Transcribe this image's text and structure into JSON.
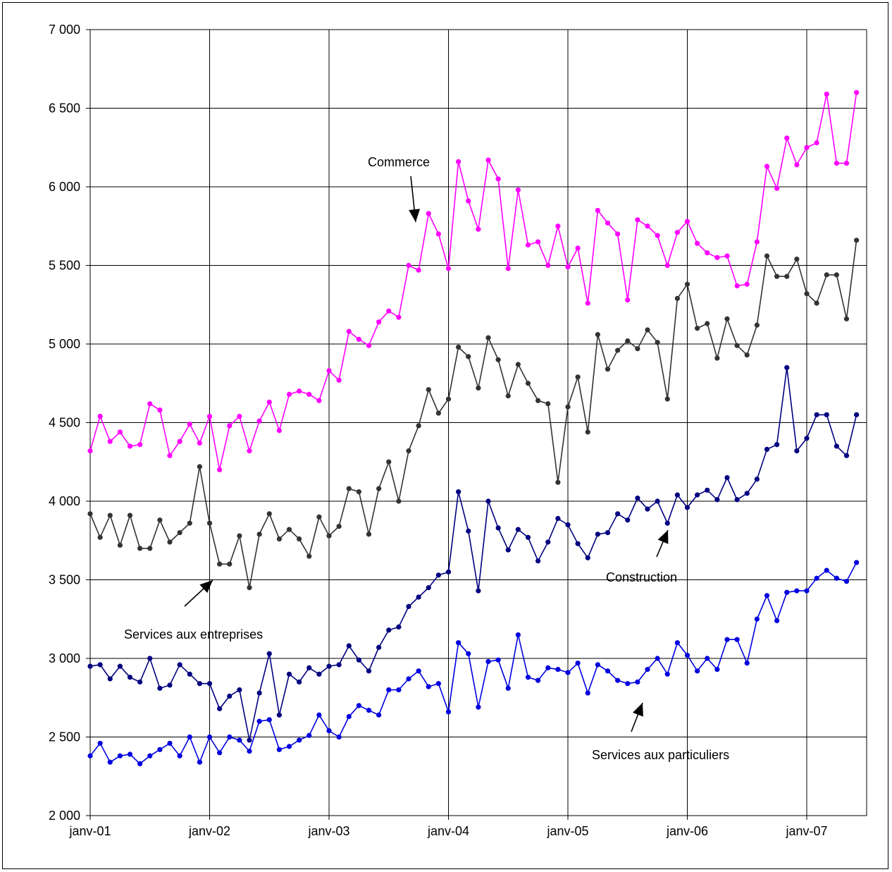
{
  "chart_data": {
    "type": "line",
    "title": "",
    "xlabel": "",
    "ylabel": "",
    "ylim": [
      2000,
      7000
    ],
    "y_ticks": [
      "2 000",
      "2 500",
      "3 000",
      "3 500",
      "4 000",
      "4 500",
      "5 000",
      "5 500",
      "6 000",
      "6 500",
      "7 000"
    ],
    "x_ticks": [
      "janv-01",
      "janv-02",
      "janv-03",
      "janv-04",
      "janv-05",
      "janv-06",
      "janv-07"
    ],
    "x_start": "janv-01",
    "grid": true,
    "legend": "none",
    "series": [
      {
        "name": "Commerce",
        "color": "#ff00ff",
        "values": [
          4320,
          4540,
          4380,
          4440,
          4350,
          4360,
          4620,
          4580,
          4290,
          4380,
          4490,
          4370,
          4540,
          4200,
          4480,
          4540,
          4320,
          4510,
          4630,
          4450,
          4680,
          4700,
          4680,
          4640,
          4830,
          4770,
          5080,
          5030,
          4990,
          5140,
          5210,
          5170,
          5500,
          5470,
          5830,
          5700,
          5480,
          6160,
          5910,
          5730,
          6170,
          6050,
          5480,
          5980,
          5630,
          5650,
          5500,
          5750,
          5490,
          5610,
          5260,
          5850,
          5770,
          5700,
          5280,
          5790,
          5750,
          5690,
          5500,
          5710,
          5780,
          5640,
          5580,
          5550,
          5560,
          5370,
          5380,
          5650,
          6130,
          5990,
          6310,
          6140,
          6250,
          6280,
          6590,
          6150,
          6150,
          6600
        ]
      },
      {
        "name": "Services aux entreprises",
        "color": "#333333",
        "values": [
          3920,
          3770,
          3910,
          3720,
          3910,
          3700,
          3700,
          3880,
          3740,
          3800,
          3860,
          4220,
          3860,
          3600,
          3600,
          3780,
          3450,
          3790,
          3920,
          3760,
          3820,
          3760,
          3650,
          3900,
          3780,
          3840,
          4080,
          4060,
          3790,
          4080,
          4250,
          4000,
          4320,
          4480,
          4710,
          4560,
          4650,
          4980,
          4920,
          4720,
          5040,
          4900,
          4670,
          4870,
          4750,
          4640,
          4620,
          4120,
          4600,
          4790,
          4440,
          5060,
          4840,
          4960,
          5020,
          4970,
          5090,
          5010,
          4650,
          5290,
          5380,
          5100,
          5130,
          4910,
          5160,
          4990,
          4930,
          5120,
          5560,
          5430,
          5430,
          5540,
          5320,
          5260,
          5440,
          5440,
          5160,
          5660
        ]
      },
      {
        "name": "Construction",
        "color": "#000080",
        "values": [
          2950,
          2960,
          2870,
          2950,
          2880,
          2850,
          3000,
          2810,
          2830,
          2960,
          2900,
          2840,
          2840,
          2680,
          2760,
          2800,
          2480,
          2780,
          3030,
          2640,
          2900,
          2850,
          2940,
          2900,
          2950,
          2960,
          3080,
          2990,
          2920,
          3070,
          3180,
          3200,
          3330,
          3390,
          3450,
          3530,
          3550,
          4060,
          3810,
          3430,
          4000,
          3830,
          3690,
          3820,
          3770,
          3620,
          3740,
          3890,
          3850,
          3730,
          3640,
          3790,
          3800,
          3920,
          3880,
          4020,
          3950,
          4000,
          3860,
          4040,
          3960,
          4040,
          4070,
          4010,
          4150,
          4010,
          4050,
          4140,
          4330,
          4360,
          4850,
          4320,
          4400,
          4550,
          4550,
          4350,
          4290,
          4550
        ]
      },
      {
        "name": "Services aux particuliers",
        "color": "#0000e0",
        "values": [
          2380,
          2460,
          2340,
          2380,
          2390,
          2330,
          2380,
          2420,
          2460,
          2380,
          2500,
          2340,
          2500,
          2400,
          2500,
          2480,
          2410,
          2600,
          2610,
          2420,
          2440,
          2480,
          2510,
          2640,
          2540,
          2500,
          2630,
          2700,
          2670,
          2640,
          2800,
          2800,
          2870,
          2920,
          2820,
          2840,
          2660,
          3100,
          3030,
          2690,
          2980,
          2990,
          2810,
          3150,
          2880,
          2860,
          2940,
          2930,
          2910,
          2970,
          2780,
          2960,
          2920,
          2860,
          2840,
          2850,
          2930,
          3000,
          2900,
          3100,
          3020,
          2920,
          3000,
          2930,
          3120,
          3120,
          2970,
          3250,
          3400,
          3240,
          3420,
          3430,
          3430,
          3510,
          3560,
          3510,
          3490,
          3610
        ]
      }
    ],
    "annotations": [
      {
        "label": "Commerce",
        "series": "Commerce"
      },
      {
        "label": "Services aux entreprises",
        "series": "Services aux entreprises"
      },
      {
        "label": "Construction",
        "series": "Construction"
      },
      {
        "label": "Services aux particuliers",
        "series": "Services aux particuliers"
      }
    ]
  }
}
